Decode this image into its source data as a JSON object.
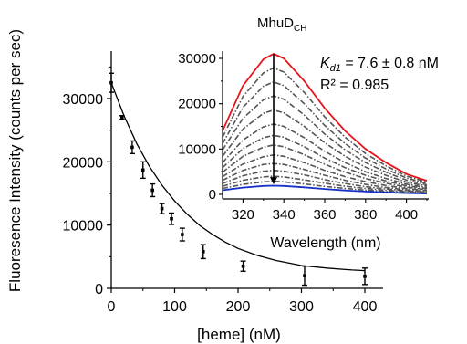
{
  "chart_data": [
    {
      "type": "scatter",
      "title": "",
      "xlabel": "[heme] (nM)",
      "ylabel": "Fluoresence Intensity (counts per sec)",
      "xlim": [
        0,
        420
      ],
      "ylim": [
        0,
        37000
      ],
      "xticks": [
        0,
        100,
        200,
        300,
        400
      ],
      "yticks": [
        0,
        10000,
        20000,
        30000
      ],
      "grid": false,
      "legend": "none",
      "colors": {
        "points": "#000000",
        "fit": "#000000"
      },
      "series": [
        {
          "x": [
            0,
            17,
            33,
            50,
            65,
            80,
            95,
            112,
            145,
            208,
            305,
            400
          ],
          "y": [
            32500,
            27000,
            22300,
            18700,
            15500,
            12600,
            11000,
            8500,
            5800,
            3500,
            2000,
            1900
          ],
          "err": [
            1500,
            300,
            1000,
            1300,
            1000,
            800,
            900,
            1000,
            1100,
            800,
            1500,
            1300
          ]
        }
      ],
      "fit": {
        "x": [
          0,
          20,
          40,
          60,
          80,
          100,
          120,
          140,
          160,
          180,
          200,
          230,
          260,
          300,
          340,
          380,
          400
        ],
        "y": [
          32500,
          27300,
          22900,
          19300,
          16300,
          13800,
          11700,
          9900,
          8500,
          7300,
          6300,
          5200,
          4400,
          3600,
          3200,
          2900,
          2800
        ]
      }
    },
    {
      "type": "line",
      "title": "MhuD",
      "title_subscript": "CH",
      "xlabel": "Wavelength (nm)",
      "ylabel": "",
      "xlim": [
        310,
        410
      ],
      "ylim": [
        0,
        32000
      ],
      "xticks": [
        320,
        340,
        360,
        380,
        400
      ],
      "yticks": [
        0,
        10000,
        20000,
        30000
      ],
      "grid": false,
      "annotations": {
        "kd_symbol": "K",
        "kd_subscript": "d1",
        "kd_value": " = 7.6 ± 0.8 nM",
        "r2": "R² = 0.985"
      },
      "colors": {
        "first": "#e8141b",
        "last": "#1631c8",
        "intermediate": "#555555",
        "arrow": "#000000"
      },
      "x": [
        310,
        320,
        330,
        335,
        340,
        350,
        360,
        370,
        380,
        390,
        400,
        410
      ],
      "series": [
        {
          "values": [
            14000,
            24000,
            29800,
            31000,
            30000,
            25000,
            19000,
            14000,
            10000,
            7000,
            4500,
            3000
          ]
        },
        {
          "values": [
            12600,
            21600,
            26800,
            27900,
            27000,
            22500,
            17100,
            12600,
            9000,
            6300,
            4050,
            2700
          ]
        },
        {
          "values": [
            11200,
            19200,
            23840,
            24800,
            24000,
            20000,
            15200,
            11200,
            8000,
            5600,
            3600,
            2400
          ]
        },
        {
          "values": [
            9800,
            16800,
            20860,
            21700,
            21000,
            17500,
            13300,
            9800,
            7000,
            4900,
            3150,
            2100
          ]
        },
        {
          "values": [
            8400,
            14400,
            17880,
            18600,
            18000,
            15000,
            11400,
            8400,
            6000,
            4200,
            2700,
            1800
          ]
        },
        {
          "values": [
            7000,
            12000,
            14900,
            15500,
            15000,
            12500,
            9500,
            7000,
            5000,
            3500,
            2250,
            1500
          ]
        },
        {
          "values": [
            5900,
            10100,
            12500,
            13000,
            12600,
            10500,
            8000,
            5900,
            4200,
            2950,
            1900,
            1260
          ]
        },
        {
          "values": [
            4900,
            8400,
            10400,
            10900,
            10500,
            8750,
            6650,
            4900,
            3500,
            2450,
            1580,
            1050
          ]
        },
        {
          "values": [
            3900,
            6700,
            8300,
            8700,
            8400,
            7000,
            5300,
            3900,
            2800,
            1960,
            1260,
            840
          ]
        },
        {
          "values": [
            3100,
            5300,
            6600,
            6800,
            6600,
            5500,
            4200,
            3100,
            2200,
            1540,
            990,
            660
          ]
        },
        {
          "values": [
            2400,
            4100,
            5100,
            5300,
            5100,
            4300,
            3250,
            2400,
            1700,
            1200,
            770,
            510
          ]
        },
        {
          "values": [
            1800,
            3100,
            3850,
            4000,
            3850,
            3200,
            2450,
            1800,
            1300,
            900,
            580,
            390
          ]
        },
        {
          "values": [
            1300,
            2200,
            2750,
            2860,
            2750,
            2300,
            1750,
            1300,
            920,
            640,
            410,
            280
          ]
        },
        {
          "values": [
            900,
            1500,
            1850,
            1920,
            1850,
            1550,
            1180,
            870,
            620,
            430,
            280,
            190
          ]
        }
      ],
      "arrow": {
        "x": 335,
        "from": 31000,
        "to": 2200
      }
    }
  ]
}
